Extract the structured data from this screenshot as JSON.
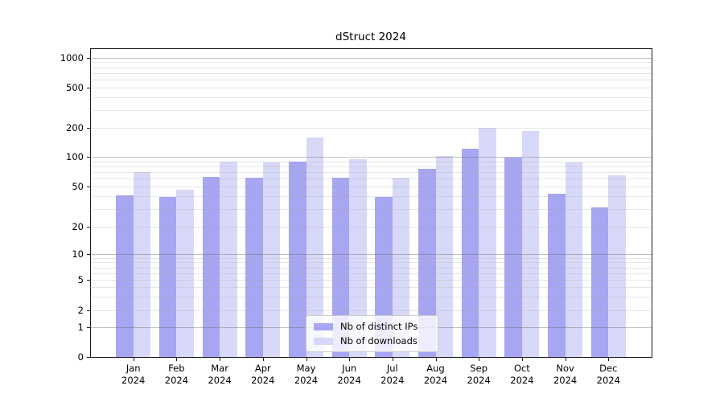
{
  "title": "dStruct 2024",
  "chart_data": {
    "type": "bar",
    "title": "dStruct 2024",
    "categories": [
      "Jan",
      "Feb",
      "Mar",
      "Apr",
      "May",
      "Jun",
      "Jul",
      "Aug",
      "Sep",
      "Oct",
      "Nov",
      "Dec"
    ],
    "category_year_line": "2024",
    "series": [
      {
        "name": "Nb of distinct IPs",
        "color": "#a6a6f2",
        "values": [
          41,
          39,
          63,
          61,
          90,
          61,
          39,
          75,
          122,
          99,
          42,
          31
        ]
      },
      {
        "name": "Nb of downloads",
        "color": "#d8d8f8",
        "values": [
          70,
          46,
          90,
          88,
          160,
          95,
          61,
          102,
          202,
          184,
          87,
          65
        ]
      }
    ],
    "yticks": [
      0,
      1,
      2,
      5,
      10,
      20,
      50,
      100,
      200,
      500,
      1000
    ],
    "ytick_labels": [
      "0",
      "1",
      "2",
      "5",
      "10",
      "20",
      "50",
      "100",
      "200",
      "500",
      "1000"
    ],
    "yscale": "log (with 0 baseline)",
    "ylim": [
      0,
      1250
    ],
    "xlabel": "",
    "ylabel": "",
    "grid": "horizontal, major and minor, drawn over bars",
    "legend_position": "lower center inside plot"
  },
  "colors": {
    "bar_distinct_ips": "#a6a6f2",
    "bar_downloads": "#d8d8f8",
    "grid_major": "#b5b5b5",
    "grid_minor": "#e8e8e8",
    "spine": "#1a1a1a",
    "background": "#ffffff"
  }
}
